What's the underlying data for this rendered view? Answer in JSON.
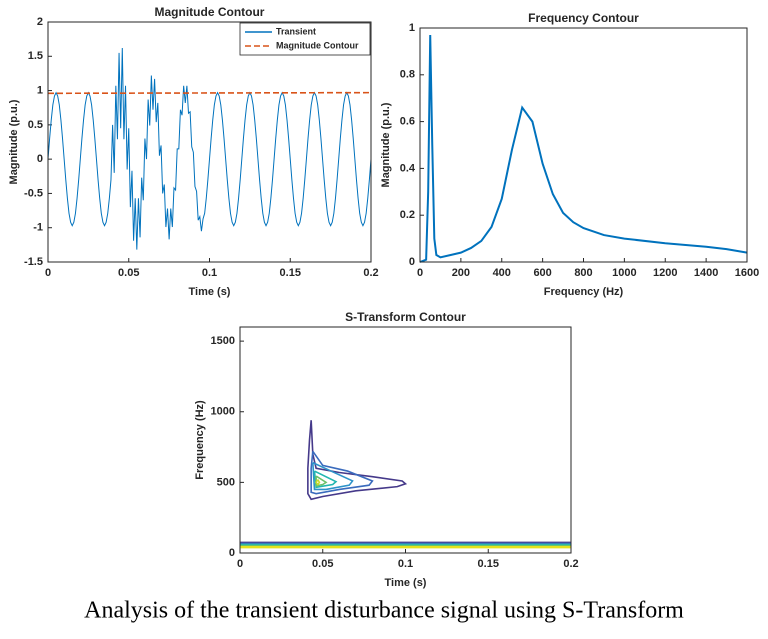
{
  "chart_data": [
    {
      "type": "line",
      "title": "Magnitude Contour",
      "xlabel": "Time (s)",
      "ylabel": "Magnitude (p.u.)",
      "xlim": [
        0,
        0.2
      ],
      "xticks": [
        0,
        0.05,
        0.1,
        0.15,
        0.2
      ],
      "ylim": [
        -1.5,
        2
      ],
      "yticks": [
        -1.5,
        -1,
        -0.5,
        0,
        0.5,
        1,
        1.5,
        2
      ],
      "legend": "upper right",
      "series": [
        {
          "name": "Transient",
          "color": "#0072bd",
          "x": [
            0,
            0.001,
            0.002,
            0.003,
            0.004,
            0.005,
            0.006,
            0.007,
            0.008,
            0.009,
            0.01,
            0.011,
            0.012,
            0.013,
            0.014,
            0.015,
            0.016,
            0.017,
            0.018,
            0.019,
            0.02,
            0.021,
            0.022,
            0.023,
            0.024,
            0.025,
            0.026,
            0.027,
            0.028,
            0.029,
            0.03,
            0.031,
            0.032,
            0.033,
            0.034,
            0.035,
            0.036,
            0.037,
            0.038,
            0.039,
            0.04,
            0.041,
            0.042,
            0.043,
            0.044,
            0.045,
            0.046,
            0.047,
            0.048,
            0.049,
            0.05,
            0.051,
            0.052,
            0.053,
            0.054,
            0.055,
            0.056,
            0.057,
            0.058,
            0.059,
            0.06,
            0.061,
            0.062,
            0.063,
            0.064,
            0.065,
            0.066,
            0.067,
            0.068,
            0.069,
            0.07,
            0.071,
            0.072,
            0.073,
            0.074,
            0.075,
            0.076,
            0.077,
            0.078,
            0.079,
            0.08,
            0.081,
            0.082,
            0.083,
            0.084,
            0.085,
            0.086,
            0.087,
            0.088,
            0.089,
            0.09,
            0.091,
            0.092,
            0.093,
            0.094,
            0.095,
            0.096,
            0.097,
            0.098,
            0.099,
            0.1,
            0.101,
            0.102,
            0.103,
            0.104,
            0.105,
            0.106,
            0.107,
            0.108,
            0.109,
            0.11,
            0.111,
            0.112,
            0.113,
            0.114,
            0.115,
            0.116,
            0.117,
            0.118,
            0.119,
            0.12,
            0.121,
            0.122,
            0.123,
            0.124,
            0.125,
            0.126,
            0.127,
            0.128,
            0.129,
            0.13,
            0.131,
            0.132,
            0.133,
            0.134,
            0.135,
            0.136,
            0.137,
            0.138,
            0.139,
            0.14,
            0.141,
            0.142,
            0.143,
            0.144,
            0.145,
            0.146,
            0.147,
            0.148,
            0.149,
            0.15,
            0.151,
            0.152,
            0.153,
            0.154,
            0.155,
            0.156,
            0.157,
            0.158,
            0.159,
            0.16,
            0.161,
            0.162,
            0.163,
            0.164,
            0.165,
            0.166,
            0.167,
            0.168,
            0.169,
            0.17,
            0.171,
            0.172,
            0.173,
            0.174,
            0.175,
            0.176,
            0.177,
            0.178,
            0.179,
            0.18,
            0.181,
            0.182,
            0.183,
            0.184,
            0.185,
            0.186,
            0.187,
            0.188,
            0.189,
            0.19,
            0.191,
            0.192,
            0.193,
            0.194,
            0.195,
            0.196,
            0.197,
            0.198,
            0.199,
            0.2
          ],
          "values": [
            0,
            0.3,
            0.57,
            0.79,
            0.92,
            0.97,
            0.92,
            0.79,
            0.57,
            0.3,
            0,
            -0.3,
            -0.57,
            -0.79,
            -0.92,
            -0.97,
            -0.92,
            -0.79,
            -0.57,
            -0.3,
            0,
            0.3,
            0.57,
            0.79,
            0.92,
            0.97,
            0.92,
            0.79,
            0.57,
            0.3,
            0,
            -0.3,
            -0.57,
            -0.79,
            -0.92,
            -0.97,
            -0.92,
            -0.79,
            -0.57,
            -0.3,
            0.5,
            -0.2,
            1.07,
            0.29,
            1.55,
            0.45,
            1.62,
            0.29,
            1.07,
            -0.15,
            0.45,
            -0.7,
            -0.17,
            -1.19,
            -0.57,
            -1.32,
            -0.57,
            -1.14,
            -0.27,
            -0.6,
            0.3,
            0,
            0.87,
            0.49,
            1.22,
            0.72,
            1.17,
            0.54,
            0.82,
            0.05,
            0.2,
            -0.5,
            -0.37,
            -0.99,
            -0.72,
            -1.17,
            -0.72,
            -0.99,
            -0.42,
            -0.45,
            0.15,
            0.15,
            0.72,
            0.64,
            1.07,
            0.82,
            1.07,
            0.67,
            0.69,
            0.18,
            0.1,
            -0.4,
            -0.47,
            -0.89,
            -0.84,
            -1.05,
            -0.87,
            -0.79,
            -0.57,
            -0.3,
            0,
            0.3,
            0.57,
            0.79,
            0.92,
            0.97,
            0.92,
            0.79,
            0.57,
            0.3,
            0,
            -0.3,
            -0.57,
            -0.79,
            -0.92,
            -0.97,
            -0.92,
            -0.79,
            -0.57,
            -0.3,
            0,
            0.3,
            0.57,
            0.79,
            0.92,
            0.97,
            0.92,
            0.79,
            0.57,
            0.3,
            0,
            -0.3,
            -0.57,
            -0.79,
            -0.92,
            -0.97,
            -0.92,
            -0.79,
            -0.57,
            -0.3,
            0,
            0.3,
            0.57,
            0.79,
            0.92,
            0.97,
            0.92,
            0.79,
            0.57,
            0.3,
            0,
            -0.3,
            -0.57,
            -0.79,
            -0.92,
            -0.97,
            -0.92,
            -0.79,
            -0.57,
            -0.3,
            0,
            0.3,
            0.57,
            0.79,
            0.92,
            0.97,
            0.92,
            0.79,
            0.57,
            0.3,
            0,
            -0.3,
            -0.57,
            -0.79,
            -0.92,
            -0.97,
            -0.92,
            -0.79,
            -0.57,
            -0.3,
            0,
            0.3,
            0.57,
            0.79,
            0.92,
            0.97,
            0.92,
            0.79,
            0.57,
            0.3,
            0,
            -0.3,
            -0.57,
            -0.79,
            -0.92,
            -0.97,
            -0.92,
            -0.79,
            -0.57,
            -0.3,
            0
          ]
        },
        {
          "name": "Magnitude Contour",
          "color": "#d95319",
          "line_style": "dashed",
          "x": [
            0,
            0.2
          ],
          "values": [
            0.96,
            0.97
          ]
        }
      ]
    },
    {
      "type": "line",
      "title": "Frequency Contour",
      "xlabel": "Frequency (Hz)",
      "ylabel": "Magnitude (p.u.)",
      "xlim": [
        0,
        1600
      ],
      "xticks": [
        0,
        200,
        400,
        600,
        800,
        1000,
        1200,
        1400,
        1600
      ],
      "ylim": [
        0,
        1
      ],
      "yticks": [
        0,
        0.2,
        0.4,
        0.6,
        0.8,
        1
      ],
      "series": [
        {
          "color": "#0072bd",
          "x": [
            0,
            30,
            40,
            50,
            60,
            70,
            80,
            100,
            150,
            200,
            250,
            300,
            350,
            400,
            450,
            500,
            550,
            600,
            650,
            700,
            750,
            800,
            900,
            1000,
            1200,
            1400,
            1500,
            1600
          ],
          "values": [
            0,
            0.01,
            0.3,
            0.97,
            0.5,
            0.1,
            0.03,
            0.02,
            0.03,
            0.04,
            0.06,
            0.09,
            0.15,
            0.27,
            0.48,
            0.66,
            0.6,
            0.42,
            0.29,
            0.21,
            0.17,
            0.145,
            0.115,
            0.1,
            0.08,
            0.065,
            0.055,
            0.04
          ]
        }
      ]
    },
    {
      "type": "contour",
      "title": "S-Transform Contour",
      "xlabel": "Time (s)",
      "ylabel": "Frequency (Hz)",
      "xlim": [
        0,
        0.2
      ],
      "xticks": [
        0,
        0.05,
        0.1,
        0.15,
        0.2
      ],
      "ylim": [
        0,
        1600
      ],
      "yticks": [
        0,
        500,
        1000,
        1500
      ],
      "series": [
        {
          "color": "#45398a",
          "x": [
            0.043,
            0.044,
            0.046,
            0.06,
            0.08,
            0.098,
            0.1,
            0.095,
            0.07,
            0.05,
            0.043,
            0.041,
            0.041,
            0.042,
            0.043
          ],
          "y": [
            940,
            700,
            600,
            570,
            540,
            510,
            490,
            470,
            440,
            400,
            380,
            420,
            600,
            800,
            940
          ]
        },
        {
          "color": "#3a6bbd",
          "x": [
            0.044,
            0.05,
            0.065,
            0.08,
            0.078,
            0.06,
            0.046,
            0.043,
            0.043,
            0.044
          ],
          "y": [
            720,
            620,
            580,
            510,
            480,
            450,
            420,
            430,
            600,
            720
          ]
        },
        {
          "color": "#2d93c9",
          "x": [
            0.044,
            0.055,
            0.068,
            0.066,
            0.052,
            0.045,
            0.044
          ],
          "y": [
            640,
            580,
            510,
            480,
            450,
            450,
            640
          ]
        },
        {
          "color": "#22b6b0",
          "x": [
            0.045,
            0.058,
            0.056,
            0.046,
            0.045
          ],
          "y": [
            580,
            505,
            485,
            465,
            580
          ]
        },
        {
          "color": "#6cc26a",
          "x": [
            0.046,
            0.052,
            0.05,
            0.046,
            0.046
          ],
          "y": [
            545,
            500,
            485,
            475,
            545
          ]
        },
        {
          "color": "#c9dc2a",
          "x": [
            0.047,
            0.048,
            0.047,
            0.046,
            0.047
          ],
          "y": [
            520,
            500,
            485,
            500,
            520
          ]
        },
        {
          "color": "#45398a",
          "x": [
            0,
            0.2
          ],
          "y": [
            75,
            75
          ]
        },
        {
          "color": "#3a6bbd",
          "x": [
            0,
            0.2
          ],
          "y": [
            68,
            68
          ]
        },
        {
          "color": "#22b6b0",
          "x": [
            0,
            0.2
          ],
          "y": [
            60,
            60
          ]
        },
        {
          "color": "#6cc26a",
          "x": [
            0,
            0.2
          ],
          "y": [
            52,
            52
          ]
        },
        {
          "color": "#e5e21c",
          "x": [
            0,
            0.2
          ],
          "y": [
            44,
            44
          ]
        },
        {
          "color": "#e5e21c",
          "x": [
            0,
            0.2
          ],
          "y": [
            38,
            38
          ]
        }
      ]
    }
  ],
  "caption": "Analysis of the transient disturbance signal using S-Transform"
}
